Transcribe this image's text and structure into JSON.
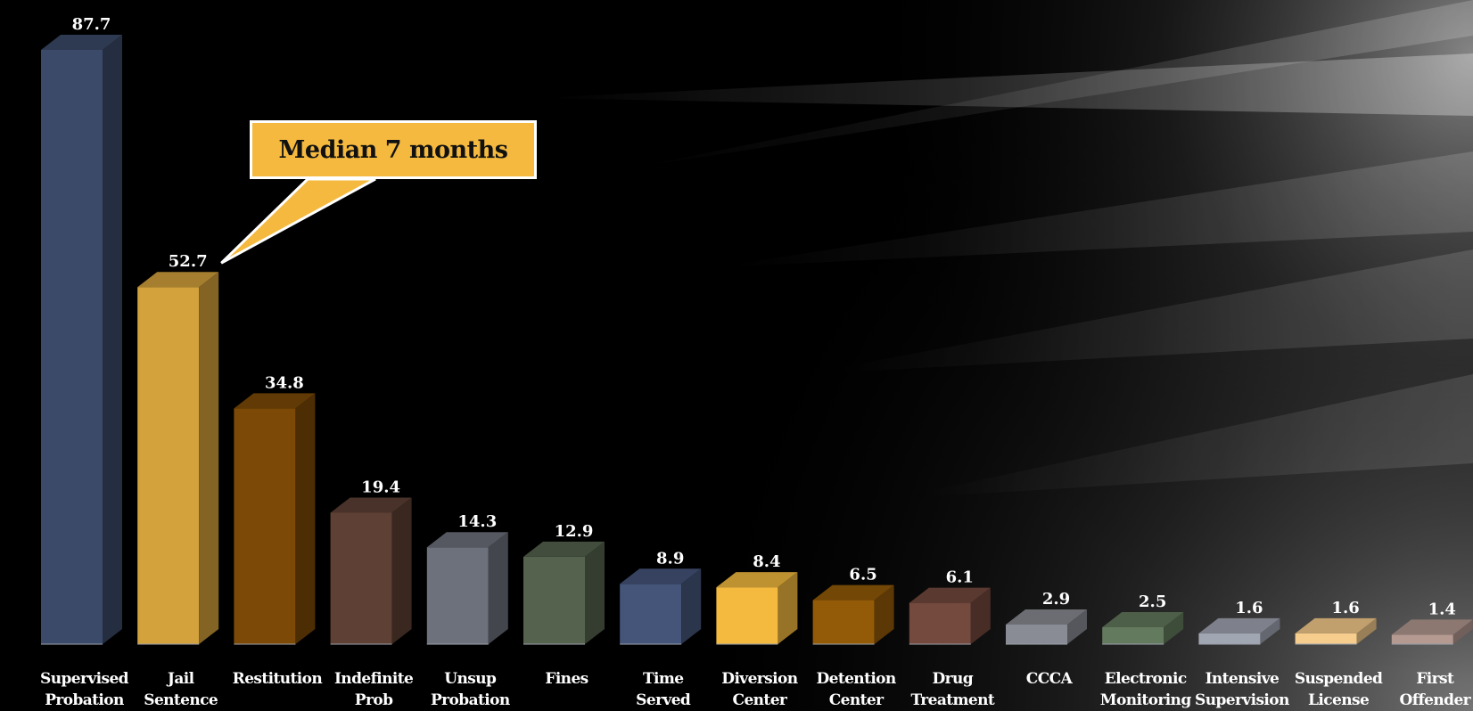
{
  "chart_data": {
    "type": "bar",
    "categories": [
      [
        "Supervised",
        "Probation"
      ],
      [
        "Jail",
        "Sentence"
      ],
      [
        "Restitution"
      ],
      [
        "Indefinite",
        "Prob"
      ],
      [
        "Unsup",
        "Probation"
      ],
      [
        "Fines"
      ],
      [
        "Time",
        "Served"
      ],
      [
        "Diversion",
        "Center"
      ],
      [
        "Detention",
        "Center"
      ],
      [
        "Drug",
        "Treatment"
      ],
      [
        "CCCA"
      ],
      [
        "Electronic",
        "Monitoring"
      ],
      [
        "Intensive",
        "Supervision"
      ],
      [
        "Suspended",
        "License"
      ],
      [
        "First",
        "Offender"
      ]
    ],
    "values": [
      87.7,
      52.7,
      34.8,
      19.4,
      14.3,
      12.9,
      8.9,
      8.4,
      6.5,
      6.1,
      2.9,
      2.5,
      1.6,
      1.6,
      1.4
    ],
    "value_labels": [
      "87.7",
      "52.7",
      "34.8",
      "19.4",
      "14.3",
      "12.9",
      "8.9",
      "8.4",
      "6.5",
      "6.1",
      "2.9",
      "2.5",
      "1.6",
      "1.6",
      "1.4"
    ],
    "bar_colors": [
      "#3b4a68",
      "#d4a23c",
      "#7c4a06",
      "#5e4034",
      "#6d717c",
      "#55634e",
      "#45557a",
      "#f4ba3f",
      "#935b08",
      "#74493e",
      "#898c94",
      "#647a5e",
      "#a1a6b3",
      "#f7cd8d",
      "#b49a91"
    ],
    "annotation": "Median 7 months",
    "annotation_target": "Jail Sentence",
    "ylim": [
      0,
      90
    ],
    "grid": false,
    "background": "#000000",
    "label_color": "#ffffff",
    "callout_color": "#f4b93e"
  }
}
